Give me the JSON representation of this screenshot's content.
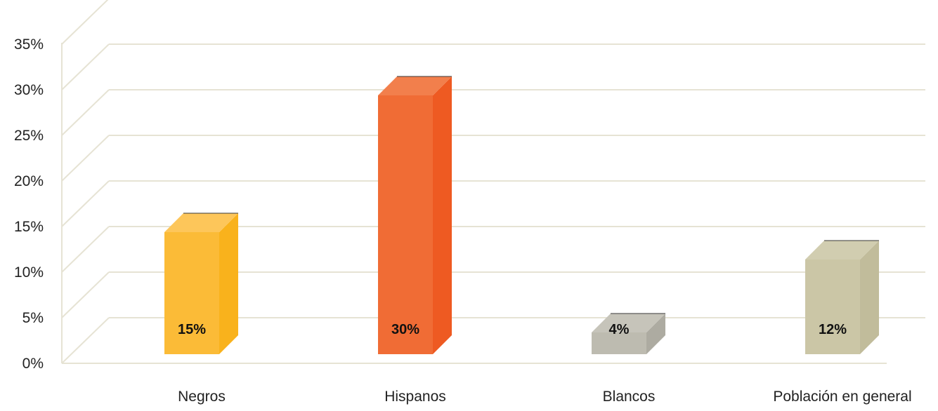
{
  "chart_data": {
    "type": "bar",
    "categories": [
      "Negros",
      "Hispanos",
      "Blancos",
      "Población en general"
    ],
    "values": [
      15,
      30,
      4,
      12
    ],
    "data_labels": [
      "15%",
      "30%",
      "4%",
      "12%"
    ],
    "yticks": [
      "0%",
      "5%",
      "10%",
      "15%",
      "20%",
      "25%",
      "30%",
      "35%"
    ],
    "ylim": [
      0,
      35
    ],
    "title": "",
    "xlabel": "",
    "ylabel": "",
    "grid": true,
    "legend": "none",
    "style": "3d",
    "colors": {
      "bars": [
        {
          "front": "#FBBB37",
          "side": "#F9B21C",
          "top": "#FDC65A"
        },
        {
          "front": "#F06C35",
          "side": "#EE5A22",
          "top": "#F27F4C"
        },
        {
          "front": "#BDBBB0",
          "side": "#ADABA1",
          "top": "#C6C4BA"
        },
        {
          "front": "#CBC6A6",
          "side": "#C1BC9B",
          "top": "#D1CDB0"
        }
      ],
      "grid": "#E6E3D4",
      "text": "#222222"
    }
  }
}
